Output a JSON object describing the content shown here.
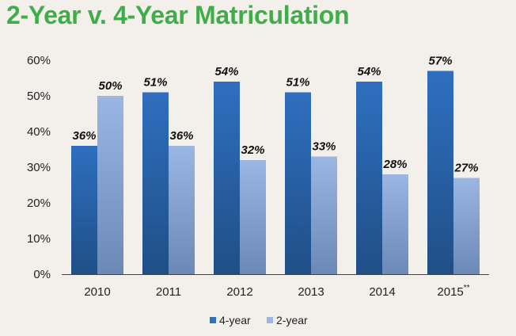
{
  "title": "2-Year v. 4-Year Matriculation",
  "colors": {
    "title": "#3fae49",
    "four_year_top": "#2f6fbf",
    "four_year_bottom": "#1f4f86",
    "two_year_top": "#9bb6e2",
    "two_year_bottom": "#6c88b6",
    "axis": "#444444",
    "background": "#f3efeb"
  },
  "chart_data": {
    "type": "bar",
    "title": "2-Year v. 4-Year Matriculation",
    "categories": [
      "2010",
      "2011",
      "2012",
      "2013",
      "2014",
      "2015"
    ],
    "category_suffix": [
      "",
      "",
      "",
      "",
      "",
      "**"
    ],
    "series": [
      {
        "name": "4-year",
        "values": [
          36,
          51,
          54,
          51,
          54,
          57
        ],
        "labels": [
          "36%",
          "51%",
          "54%",
          "51%",
          "54%",
          "57%"
        ]
      },
      {
        "name": "2-year",
        "values": [
          50,
          36,
          32,
          33,
          28,
          27
        ],
        "labels": [
          "50%",
          "36%",
          "32%",
          "33%",
          "28%",
          "27%"
        ]
      }
    ],
    "y_ticks": [
      "0%",
      "10%",
      "20%",
      "30%",
      "40%",
      "50%",
      "60%"
    ],
    "ylim": [
      0,
      60
    ],
    "grid": false,
    "legend_position": "bottom",
    "xlabel": "",
    "ylabel": ""
  }
}
